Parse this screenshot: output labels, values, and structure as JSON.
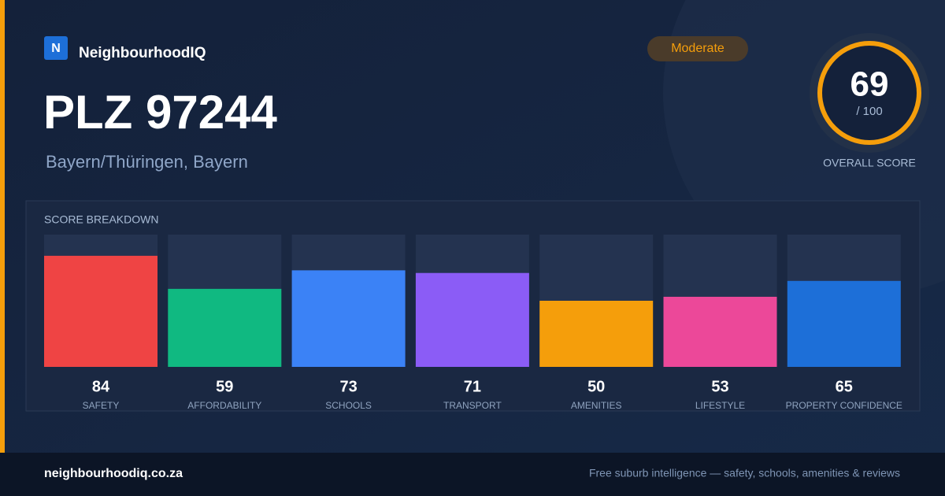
{
  "brand": {
    "logo": "N",
    "name": "NeighbourhoodIQ"
  },
  "header": {
    "title": "PLZ 97244",
    "subtitle": "Bayern/Thüringen, Bayern",
    "badge": "Moderate"
  },
  "score": {
    "value": 69,
    "max_label": "/ 100",
    "caption": "OVERALL SCORE"
  },
  "chart_data": {
    "type": "bar",
    "title": "SCORE BREAKDOWN",
    "categories": [
      "SAFETY",
      "AFFORDABILITY",
      "SCHOOLS",
      "TRANSPORT",
      "AMENITIES",
      "LIFESTYLE",
      "PROPERTY CONFIDENCE"
    ],
    "values": [
      84,
      59,
      73,
      71,
      50,
      53,
      65
    ],
    "colors": [
      "#ef4444",
      "#10b981",
      "#3b82f6",
      "#8b5cf6",
      "#f59e0b",
      "#ec4899",
      "#1d6fd8"
    ],
    "ylim": [
      0,
      100
    ]
  },
  "footer": {
    "site": "neighbourhoodiq.co.za",
    "tagline": "Free suburb intelligence — safety, schools, amenities & reviews"
  }
}
